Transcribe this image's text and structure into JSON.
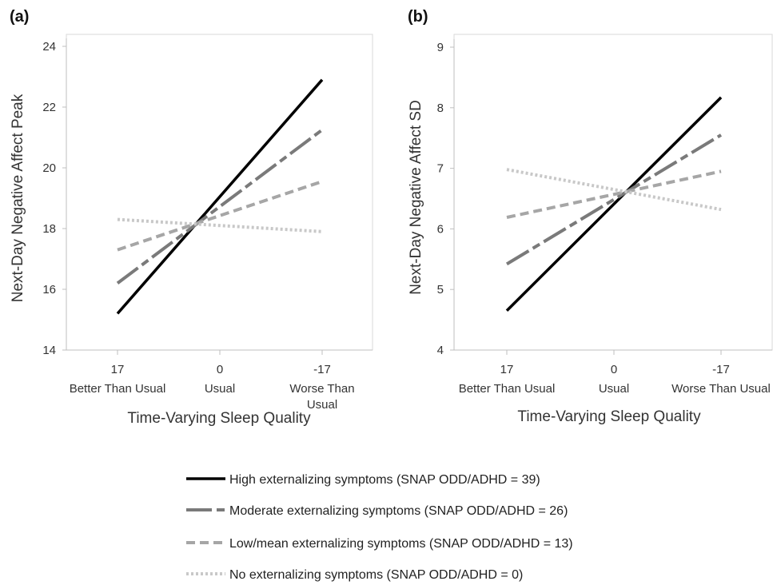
{
  "chart_data": [
    {
      "type": "line",
      "panel_label": "(a)",
      "xlabel": "Time-Varying Sleep Quality",
      "ylabel": "Next-Day Negative Affect Peak",
      "ylim": [
        14,
        24
      ],
      "yticks": [
        14,
        16,
        18,
        20,
        22,
        24
      ],
      "xlim": [
        17,
        -17
      ],
      "xticks": [
        {
          "value": 17,
          "label": "17",
          "sublabel": [
            "Better Than Usual"
          ]
        },
        {
          "value": 0,
          "label": "0",
          "sublabel": [
            "Usual"
          ]
        },
        {
          "value": -17,
          "label": "-17",
          "sublabel": [
            "Worse Than",
            "Usual"
          ]
        }
      ],
      "grid": false,
      "series": [
        {
          "name": "High externalizing symptoms (SNAP ODD/ADHD = 39)",
          "style": "solid",
          "color": "#000000",
          "x": [
            17,
            -17
          ],
          "y": [
            15.2,
            22.9
          ]
        },
        {
          "name": "Moderate externalizing symptoms (SNAP ODD/ADHD = 26)",
          "style": "longdash",
          "color": "#7a7a7a",
          "x": [
            17,
            -17
          ],
          "y": [
            16.2,
            21.25
          ]
        },
        {
          "name": "Low/mean externalizing symptoms (SNAP ODD/ADHD = 13)",
          "style": "dash",
          "color": "#a6a6a6",
          "x": [
            17,
            -17
          ],
          "y": [
            17.3,
            19.55
          ]
        },
        {
          "name": "No externalizing symptoms (SNAP ODD/ADHD = 0)",
          "style": "dot",
          "color": "#c8c8c8",
          "x": [
            17,
            -17
          ],
          "y": [
            18.3,
            17.9
          ]
        }
      ]
    },
    {
      "type": "line",
      "panel_label": "(b)",
      "xlabel": "Time-Varying Sleep Quality",
      "ylabel": "Next-Day Negative Affect SD",
      "ylim": [
        4,
        9
      ],
      "yticks": [
        4,
        5,
        6,
        7,
        8,
        9
      ],
      "xlim": [
        17,
        -17
      ],
      "xticks": [
        {
          "value": 17,
          "label": "17",
          "sublabel": [
            "Better Than Usual"
          ]
        },
        {
          "value": 0,
          "label": "0",
          "sublabel": [
            "Usual"
          ]
        },
        {
          "value": -17,
          "label": "-17",
          "sublabel": [
            "Worse Than Usual"
          ]
        }
      ],
      "grid": false,
      "series": [
        {
          "name": "High externalizing symptoms (SNAP ODD/ADHD = 39)",
          "style": "solid",
          "color": "#000000",
          "x": [
            17,
            -17
          ],
          "y": [
            4.65,
            8.17
          ]
        },
        {
          "name": "Moderate externalizing symptoms (SNAP ODD/ADHD = 26)",
          "style": "longdash",
          "color": "#7a7a7a",
          "x": [
            17,
            -17
          ],
          "y": [
            5.42,
            7.55
          ]
        },
        {
          "name": "Low/mean externalizing symptoms (SNAP ODD/ADHD = 13)",
          "style": "dash",
          "color": "#a6a6a6",
          "x": [
            17,
            -17
          ],
          "y": [
            6.19,
            6.95
          ]
        },
        {
          "name": "No externalizing symptoms (SNAP ODD/ADHD = 0)",
          "style": "dot",
          "color": "#c8c8c8",
          "x": [
            17,
            -17
          ],
          "y": [
            6.98,
            6.32
          ]
        }
      ]
    }
  ],
  "legend": {
    "placement": "bottom-center",
    "entries": [
      {
        "label": "High externalizing symptoms (SNAP ODD/ADHD = 39)",
        "style": "solid",
        "color": "#000000"
      },
      {
        "label": "Moderate externalizing symptoms (SNAP ODD/ADHD = 26)",
        "style": "longdash",
        "color": "#7a7a7a"
      },
      {
        "label": "Low/mean externalizing symptoms (SNAP ODD/ADHD = 13)",
        "style": "dash",
        "color": "#a6a6a6"
      },
      {
        "label": "No externalizing symptoms (SNAP ODD/ADHD = 0)",
        "style": "dot",
        "color": "#c8c8c8"
      }
    ]
  }
}
